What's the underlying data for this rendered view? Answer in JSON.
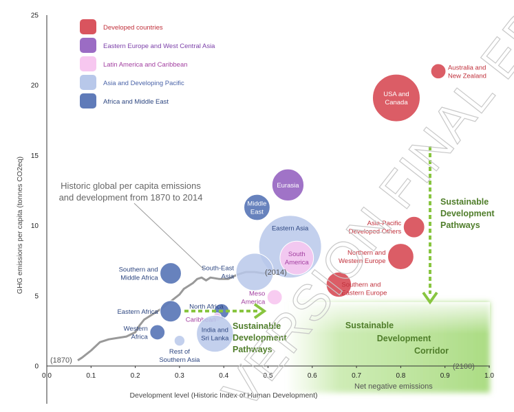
{
  "chart_data": {
    "type": "scatter",
    "xlabel": "Development level (Historic Index of Human Development)",
    "ylabel": "GHG emissions per capita (tonnes CO2eq)",
    "xlim": [
      0.0,
      1.0
    ],
    "ylim": [
      0,
      25
    ],
    "x_ticks": [
      "0.0",
      "0.1",
      "0.2",
      "0.3",
      "0.4",
      "0.5",
      "0.6",
      "0.7",
      "0.8",
      "0.9",
      "1.0"
    ],
    "y_ticks": [
      "0",
      "5",
      "10",
      "15",
      "20",
      "25"
    ],
    "colors": {
      "developed": "#d9545e",
      "eastern_europe": "#9b6cc4",
      "latin_america": "#f7c7f0",
      "asia_pacific": "#b8c8ea",
      "africa_me": "#5f7bb9",
      "corridor": "#8fd05a",
      "arrow": "#88c540"
    },
    "legend": [
      {
        "label": "Developed countries",
        "color": "#d9545e",
        "text_color": "#c0303b"
      },
      {
        "label": "Eastern Europe and West Central Asia",
        "color": "#9b6cc4",
        "text_color": "#7b3fa8"
      },
      {
        "label": "Latin America and Caribbean",
        "color": "#f7c7f0",
        "text_color": "#a23fa0"
      },
      {
        "label": "Asia and Developing Pacific",
        "color": "#b8c8ea",
        "text_color": "#4a63a8"
      },
      {
        "label": "Africa and Middle East",
        "color": "#5f7bb9",
        "text_color": "#2d4680"
      }
    ],
    "series": [
      {
        "name": "Australia and New Zealand",
        "group": "developed",
        "x": 0.885,
        "y": 21.0,
        "size": 0.1,
        "label": [
          "Australia and",
          "New Zealand"
        ],
        "label_pos": "right"
      },
      {
        "name": "USA and Canada",
        "group": "developed",
        "x": 0.79,
        "y": 19.1,
        "size": 1.0,
        "label": [
          "USA and",
          "Canada"
        ],
        "label_pos": "inside"
      },
      {
        "name": "Asia-Pacific Developed Others",
        "group": "developed",
        "x": 0.83,
        "y": 9.9,
        "size": 0.2,
        "label": [
          "Asia-Pacific",
          "Developed Others"
        ],
        "label_pos": "left"
      },
      {
        "name": "Northern and Western Europe",
        "group": "developed",
        "x": 0.8,
        "y": 7.8,
        "size": 0.3,
        "label": [
          "Northern and",
          "Western Europe"
        ],
        "label_pos": "left"
      },
      {
        "name": "Southern and Eastern Europe",
        "group": "developed",
        "x": 0.66,
        "y": 5.8,
        "size": 0.28,
        "label": [
          "Southern and",
          "Eastern Europe"
        ],
        "label_pos": "right"
      },
      {
        "name": "Eurasia",
        "group": "eastern_europe",
        "x": 0.545,
        "y": 12.9,
        "size": 0.45,
        "label": [
          "Eurasia"
        ],
        "label_pos": "inside"
      },
      {
        "name": "Middle East",
        "group": "africa_me",
        "x": 0.475,
        "y": 11.3,
        "size": 0.3,
        "label": [
          "Middle",
          "East"
        ],
        "label_pos": "inside"
      },
      {
        "name": "Eastern Asia",
        "group": "asia_pacific",
        "x": 0.55,
        "y": 8.5,
        "size": 2.3,
        "label": [
          "Eastern Asia"
        ],
        "label_pos": "inside"
      },
      {
        "name": "South America",
        "group": "latin_america",
        "x": 0.565,
        "y": 7.7,
        "size": 0.5,
        "label": [
          "South",
          "America"
        ],
        "label_pos": "inside"
      },
      {
        "name": "South-East Asia",
        "group": "asia_pacific",
        "x": 0.47,
        "y": 6.7,
        "size": 0.62,
        "label": [
          "South-East",
          "Asia"
        ],
        "label_pos": "left"
      },
      {
        "name": "Meso America",
        "group": "latin_america",
        "x": 0.515,
        "y": 4.9,
        "size": 0.1,
        "label": [
          "Meso",
          "America"
        ],
        "label_pos": "left"
      },
      {
        "name": "Southern and Middle Africa",
        "group": "africa_me",
        "x": 0.28,
        "y": 6.6,
        "size": 0.2,
        "label": [
          "Southern and",
          "Middle Africa"
        ],
        "label_pos": "left"
      },
      {
        "name": "Eastern Africa",
        "group": "africa_me",
        "x": 0.28,
        "y": 3.9,
        "size": 0.2,
        "label": [
          "Eastern Africa"
        ],
        "label_pos": "left"
      },
      {
        "name": "Western Africa",
        "group": "africa_me",
        "x": 0.25,
        "y": 2.4,
        "size": 0.1,
        "label": [
          "Western",
          "Africa"
        ],
        "label_pos": "left"
      },
      {
        "name": "Rest of Southern Asia",
        "group": "asia_pacific",
        "x": 0.3,
        "y": 1.8,
        "size": 0.05,
        "label": [
          "Rest of",
          "Southern Asia"
        ],
        "label_pos": "below"
      },
      {
        "name": "North Africa",
        "group": "africa_me",
        "x": 0.395,
        "y": 3.9,
        "size": 0.1,
        "label": [
          "North Africa"
        ],
        "label_pos": "above"
      },
      {
        "name": "Caribbean",
        "group": "latin_america",
        "x": 0.385,
        "y": 3.5,
        "size": 0.03,
        "label": [
          "Caribbean"
        ],
        "label_pos": "left"
      },
      {
        "name": "India and Sri Lanka",
        "group": "asia_pacific",
        "x": 0.38,
        "y": 2.3,
        "size": 0.6,
        "label": [
          "India and",
          "Sri Lanka"
        ],
        "label_pos": "inside"
      }
    ],
    "historic_path": [
      [
        0.07,
        0.4
      ],
      [
        0.08,
        0.6
      ],
      [
        0.1,
        1.1
      ],
      [
        0.12,
        1.7
      ],
      [
        0.14,
        1.9
      ],
      [
        0.16,
        2.0
      ],
      [
        0.18,
        2.1
      ],
      [
        0.2,
        2.4
      ],
      [
        0.21,
        2.9
      ],
      [
        0.22,
        3.3
      ],
      [
        0.24,
        3.7
      ],
      [
        0.26,
        4.1
      ],
      [
        0.28,
        4.6
      ],
      [
        0.3,
        5.1
      ],
      [
        0.31,
        5.5
      ],
      [
        0.33,
        5.9
      ],
      [
        0.34,
        6.2
      ],
      [
        0.35,
        6.3
      ],
      [
        0.36,
        6.1
      ],
      [
        0.37,
        6.3
      ],
      [
        0.39,
        6.2
      ],
      [
        0.41,
        6.2
      ],
      [
        0.43,
        6.5
      ],
      [
        0.45,
        6.7
      ],
      [
        0.47,
        6.7
      ],
      [
        0.49,
        6.6
      ],
      [
        0.5,
        6.7
      ]
    ],
    "annotations": {
      "historic_text": [
        "Historic global per capita emissions",
        "and development from 1870 to 2014"
      ],
      "start_label": "(1870)",
      "end_label": "(2014)",
      "end_year_label": "(2100)",
      "net_negative": "Net negative emissions",
      "sdp_vertical": [
        "Sustainable",
        "Development",
        "Pathways"
      ],
      "sdp_horizontal": [
        "Sustainable",
        "Development",
        "Pathways"
      ],
      "corridor": [
        "Sustainable",
        "Development",
        "Corridor"
      ],
      "watermark": "VERSION FINAL EDITS"
    }
  }
}
